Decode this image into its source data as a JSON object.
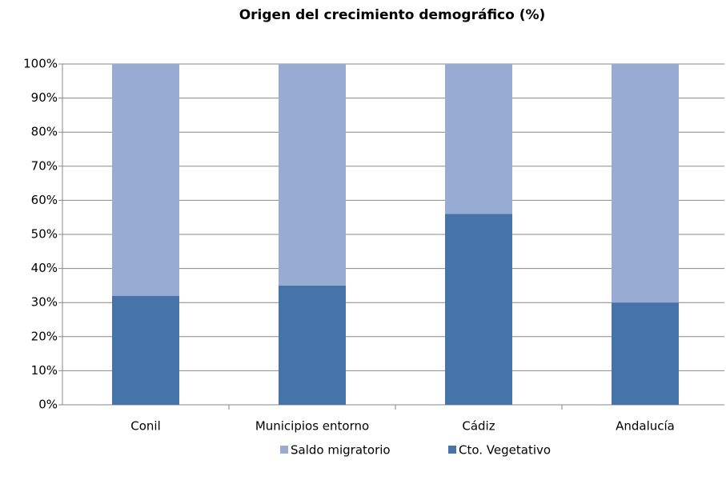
{
  "chart_data": {
    "type": "stacked_bar",
    "title": "Origen del crecimiento demográfico (%)",
    "categories": [
      "Conil",
      "Municipios entorno",
      "Cádiz",
      "Andalucía"
    ],
    "series": [
      {
        "name": "Cto. Vegetativo",
        "color": "#4674a8",
        "values": [
          32,
          35,
          56,
          30
        ]
      },
      {
        "name": "Saldo migratorio",
        "color": "#98abd2",
        "values": [
          68,
          65,
          44,
          70
        ]
      }
    ],
    "ylim": [
      0,
      100
    ],
    "yticks": [
      {
        "value": 0,
        "label": "0%"
      },
      {
        "value": 10,
        "label": "10%"
      },
      {
        "value": 20,
        "label": "20%"
      },
      {
        "value": 30,
        "label": "30%"
      },
      {
        "value": 40,
        "label": "40%"
      },
      {
        "value": 50,
        "label": "50%"
      },
      {
        "value": 60,
        "label": "60%"
      },
      {
        "value": 70,
        "label": "70%"
      },
      {
        "value": 80,
        "label": "80%"
      },
      {
        "value": 90,
        "label": "90%"
      },
      {
        "value": 100,
        "label": "100%"
      }
    ],
    "grid": true,
    "legend": "bottom"
  }
}
